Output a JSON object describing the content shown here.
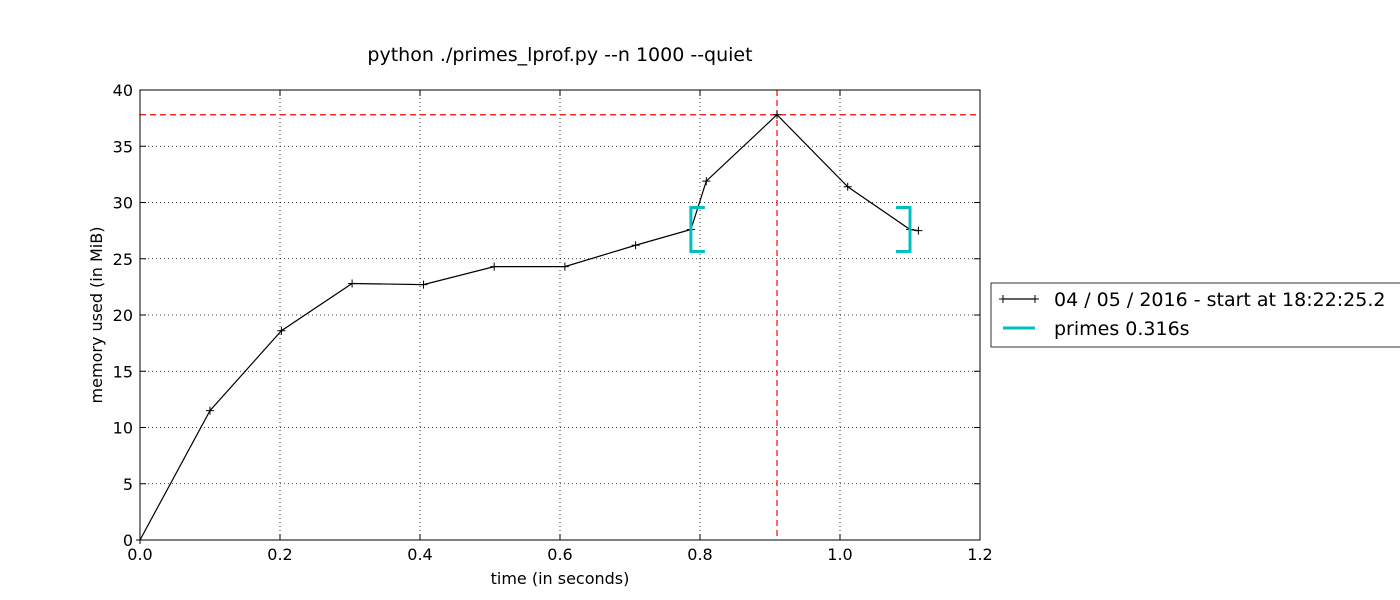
{
  "chart_data": {
    "type": "line",
    "title": "python ./primes_lprof.py --n 1000 --quiet",
    "xlabel": "time (in seconds)",
    "ylabel": "memory used (in MiB)",
    "xlim": [
      0.0,
      1.2
    ],
    "ylim": [
      0,
      40
    ],
    "x_ticks": [
      "0.0",
      "0.2",
      "0.4",
      "0.6",
      "0.8",
      "1.0",
      "1.2"
    ],
    "y_ticks": [
      "0",
      "5",
      "10",
      "15",
      "20",
      "25",
      "30",
      "35",
      "40"
    ],
    "grid": true,
    "legend_position": "right",
    "series": [
      {
        "name": "04 / 05 / 2016 - start at 18:22:25.2",
        "color": "#000000",
        "marker": "+",
        "x": [
          0.0,
          0.1,
          0.202,
          0.303,
          0.405,
          0.506,
          0.607,
          0.708,
          0.787,
          0.809,
          0.91,
          1.011,
          1.1,
          1.112
        ],
        "y": [
          0.0,
          11.5,
          18.6,
          22.8,
          22.7,
          24.3,
          24.3,
          26.2,
          27.6,
          31.9,
          37.8,
          31.4,
          27.6,
          27.5
        ]
      }
    ],
    "reference_lines": {
      "color": "#ff0000",
      "peak_memory": 37.8,
      "peak_time": 0.91
    },
    "function_markers": [
      {
        "name": "primes 0.316s",
        "color": "#00bfbf",
        "start_time": 0.787,
        "end_time": 1.1,
        "start_memory": 27.6,
        "end_memory": 27.6
      }
    ]
  }
}
